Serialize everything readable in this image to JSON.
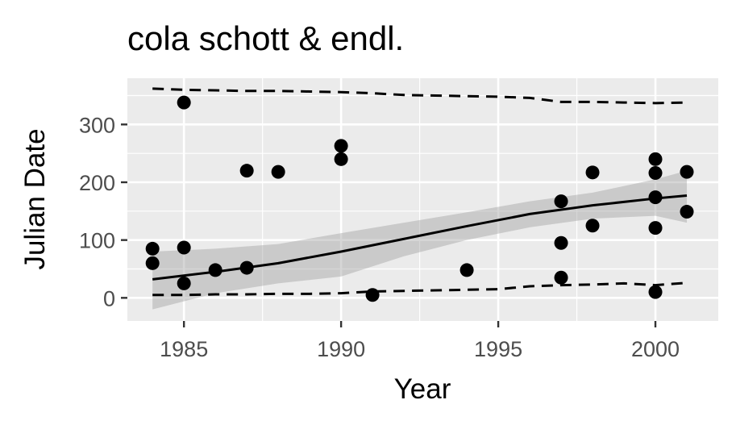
{
  "chart_data": {
    "type": "scatter",
    "title": "cola schott & endl.",
    "xlabel": "Year",
    "ylabel": "Julian Date",
    "xlim": [
      1983.2,
      2002.0
    ],
    "ylim": [
      -40,
      380
    ],
    "x_ticks": [
      1985,
      1990,
      1995,
      2000
    ],
    "y_ticks": [
      0,
      100,
      200,
      300
    ],
    "grid": true,
    "background": "#ebebeb",
    "points": [
      {
        "x": 1984,
        "y": 85
      },
      {
        "x": 1984,
        "y": 60
      },
      {
        "x": 1985,
        "y": 338
      },
      {
        "x": 1985,
        "y": 87
      },
      {
        "x": 1985,
        "y": 25
      },
      {
        "x": 1986,
        "y": 48
      },
      {
        "x": 1987,
        "y": 220
      },
      {
        "x": 1987,
        "y": 52
      },
      {
        "x": 1988,
        "y": 218
      },
      {
        "x": 1990,
        "y": 263
      },
      {
        "x": 1990,
        "y": 240
      },
      {
        "x": 1991,
        "y": 5
      },
      {
        "x": 1994,
        "y": 48
      },
      {
        "x": 1997,
        "y": 167
      },
      {
        "x": 1997,
        "y": 95
      },
      {
        "x": 1997,
        "y": 35
      },
      {
        "x": 1998,
        "y": 217
      },
      {
        "x": 1998,
        "y": 125
      },
      {
        "x": 2000,
        "y": 240
      },
      {
        "x": 2000,
        "y": 216
      },
      {
        "x": 2000,
        "y": 174
      },
      {
        "x": 2000,
        "y": 121
      },
      {
        "x": 2000,
        "y": 10
      },
      {
        "x": 2001,
        "y": 218
      },
      {
        "x": 2001,
        "y": 149
      }
    ],
    "fit": {
      "x": [
        1984,
        1986,
        1988,
        1990,
        1992,
        1994,
        1996,
        1998,
        2000,
        2001
      ],
      "y": [
        32,
        45,
        60,
        80,
        102,
        124,
        145,
        160,
        172,
        177
      ],
      "ci_low": [
        -20,
        8,
        25,
        37,
        72,
        100,
        122,
        137,
        142,
        130
      ],
      "ci_high": [
        80,
        85,
        93,
        112,
        130,
        148,
        167,
        182,
        205,
        220
      ]
    },
    "upper_quantile": {
      "x": [
        1984,
        1985,
        1986,
        1987,
        1988,
        1989,
        1990,
        1991,
        1992,
        1993,
        1994,
        1995,
        1996,
        1997,
        1998,
        1999,
        2000,
        2001
      ],
      "y": [
        362,
        360,
        359,
        358,
        358,
        357,
        356,
        354,
        351,
        350,
        349,
        348,
        346,
        339,
        339,
        338,
        337,
        338
      ]
    },
    "lower_quantile": {
      "x": [
        1984,
        1985,
        1986,
        1987,
        1988,
        1989,
        1990,
        1991,
        1992,
        1993,
        1994,
        1995,
        1996,
        1997,
        1998,
        1999,
        2000,
        2001
      ],
      "y": [
        5,
        5,
        6,
        6,
        7,
        7,
        8,
        11,
        12,
        13,
        14,
        15,
        20,
        22,
        23,
        25,
        22,
        26
      ]
    }
  }
}
